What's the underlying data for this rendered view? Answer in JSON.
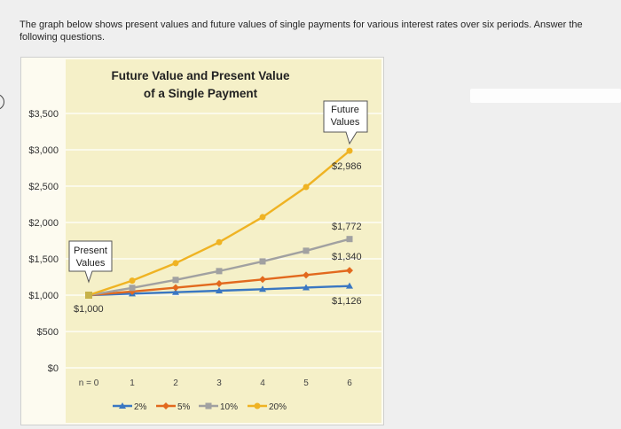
{
  "intro_text": "The graph below shows present values and future values of single payments for various interest rates over six periods. Answer the following questions.",
  "colors": {
    "page_bg": "#efefef",
    "plot_bg": "#f5f0c8",
    "panel_bg": "#fdfbf0",
    "rate_2": "#3a77c2",
    "rate_5": "#e2691e",
    "rate_10": "#a1a1a1",
    "rate_20": "#efb323"
  },
  "chart_data": {
    "type": "line",
    "title_line1": "Future Value and Present Value",
    "title_line2": "of a Single Payment",
    "categories": [
      "n = 0",
      "1",
      "2",
      "3",
      "4",
      "5",
      "6"
    ],
    "y_ticks": [
      {
        "value": 3500,
        "label": "$3,500"
      },
      {
        "value": 3000,
        "label": "$3,000"
      },
      {
        "value": 2500,
        "label": "$2,500"
      },
      {
        "value": 2000,
        "label": "$2,000"
      },
      {
        "value": 1500,
        "label": "$1,500"
      },
      {
        "value": 1000,
        "label": "$1,000"
      },
      {
        "value": 500,
        "label": "$500"
      },
      {
        "value": 0,
        "label": "$0"
      }
    ],
    "ylim": [
      0,
      3500
    ],
    "grid": true,
    "legend_position": "bottom",
    "series": [
      {
        "name": "2%",
        "color": "#3a77c2",
        "marker": "triangle",
        "values": [
          1000,
          1020,
          1040,
          1061,
          1082,
          1104,
          1126
        ]
      },
      {
        "name": "5%",
        "color": "#e2691e",
        "marker": "diamond",
        "values": [
          1000,
          1050,
          1103,
          1158,
          1216,
          1276,
          1340
        ]
      },
      {
        "name": "10%",
        "color": "#a1a1a1",
        "marker": "square",
        "values": [
          1000,
          1100,
          1210,
          1331,
          1464,
          1611,
          1772
        ]
      },
      {
        "name": "20%",
        "color": "#efb323",
        "marker": "circle",
        "values": [
          1000,
          1200,
          1440,
          1728,
          2074,
          2488,
          2986
        ]
      }
    ],
    "annotations": {
      "present_callout_line1": "Present",
      "present_callout_line2": "Values",
      "future_callout_line1": "Future",
      "future_callout_line2": "Values",
      "start_value": "$1,000",
      "end_labels": [
        "$2,986",
        "$1,772",
        "$1,340",
        "$1,126"
      ]
    }
  }
}
